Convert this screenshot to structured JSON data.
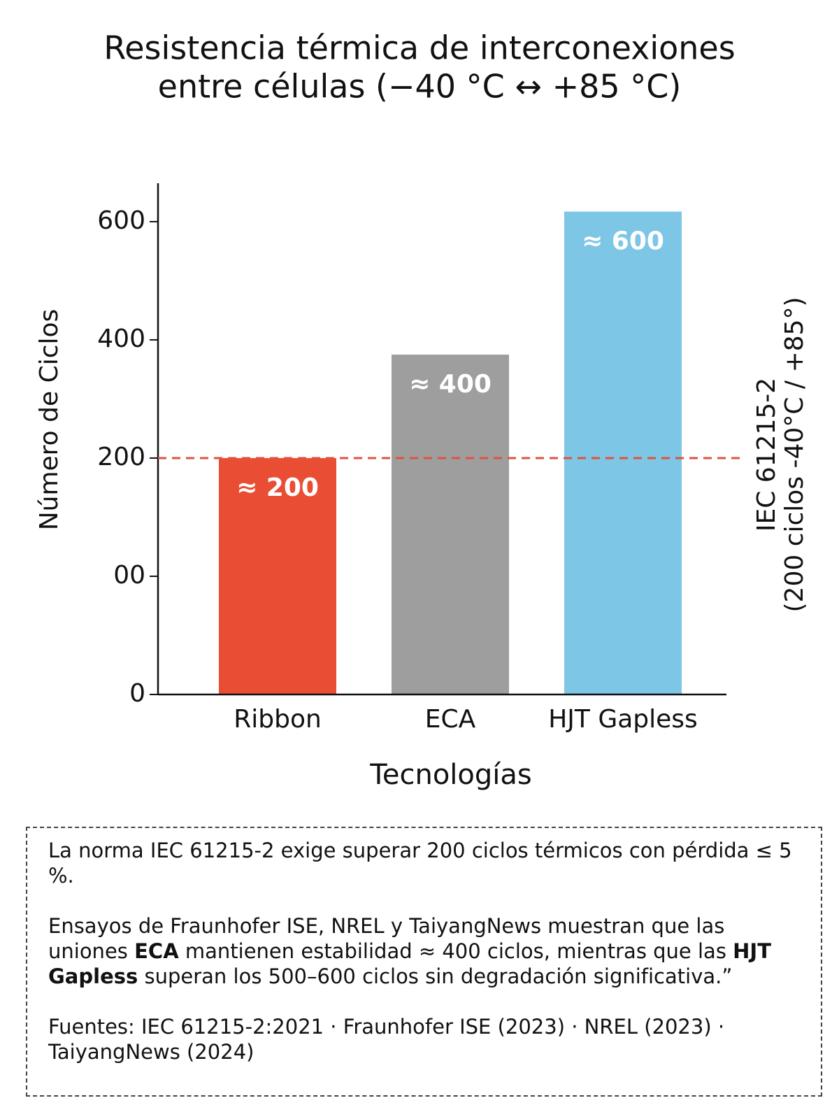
{
  "chart_data": {
    "type": "bar",
    "title": [
      "Resistencia térmica de interconexiones",
      "entre células (−40 °C ↔  +85 °C)"
    ],
    "y_label": "Número de Ciclos",
    "x_label": "Tecnologías",
    "categories": [
      "Ribbon",
      "ECA",
      "HJT Gapless"
    ],
    "values": [
      200,
      375,
      617
    ],
    "value_labels": [
      "≈ 200",
      "≈ 400",
      "≈ 600"
    ],
    "colors": [
      "#e94e35",
      "#9e9e9e",
      "#7dc6e6"
    ],
    "ylim": [
      -200,
      665
    ],
    "yticks": [
      {
        "value": -200,
        "label": "0"
      },
      {
        "value": 0,
        "label": "00"
      },
      200,
      400,
      600
    ],
    "reference_line": {
      "value": 200,
      "color": "#e0533f",
      "label": [
        "IEC 61215-2",
        "(200 ciclos -40°C / +85°)"
      ]
    }
  },
  "note": {
    "p1": "La norma IEC 61215-2 exige superar 200 ciclos térmicos con pérdida ≤ 5 %.",
    "p2": [
      "Ensayos  de Fraunhofer ISE, NREL y TaiyangNews muestran que las uniones ",
      "ECA",
      " mantienen estabilidad ≈ 400 ciclos, mientras que las ",
      "HJT Gapless",
      " superan los 500–600 ciclos sin degradación significativa.”"
    ],
    "p3": "Fuentes: IEC 61215-2:2021 · Fraunhofer ISE (2023) · NREL (2023) · TaiyangNews (2024)"
  }
}
